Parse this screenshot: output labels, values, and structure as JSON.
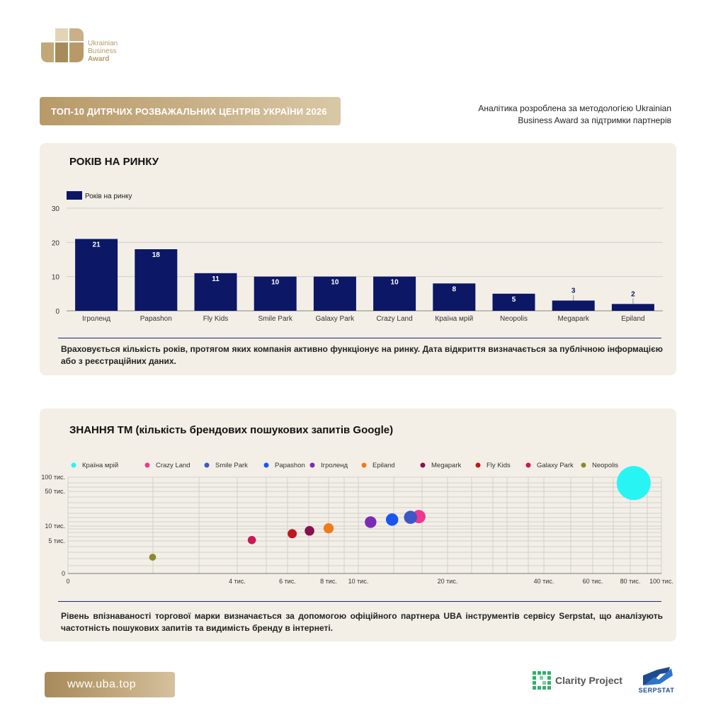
{
  "logo": {
    "line1": "Ukrainian",
    "line2": "Business",
    "line3": "Award"
  },
  "banner": {
    "title": "ТОП-10 ДИТЯЧИХ РОЗВАЖАЛЬНИХ ЦЕНТРІВ УКРАЇНИ 2026"
  },
  "methodology": {
    "text": "Аналітика розроблена за методологією Ukrainian Business Award за підтримки партнерів"
  },
  "panel1": {
    "title": "РОКІВ НА РИНКУ",
    "note": "Враховується кількість років, протягом яких компанія активно функціонує на ринку. Дата відкриття визначається за публічною інформацією або з реєстраційних даних."
  },
  "panel2": {
    "title": "ЗНАННЯ ТМ (кількість брендових пошукових запитів Google)",
    "note": "Рівень впізнаваності торгової марки визначається за допомогою офіційного партнера UBA інструментів сервісу Serpstat, що аналізують частотність пошукових запитів та видимість бренду в інтернеті."
  },
  "footer": {
    "site": "www.uba.top",
    "clarity": "Clarity Project",
    "serpstat": "SERPSTAT"
  },
  "colors": {
    "bar": "#0c1766",
    "gold": "#b89a68",
    "panel": "#f3efe6"
  },
  "chart_data": [
    {
      "type": "bar",
      "title": "РОКІВ НА РИНКУ",
      "legend": "Років на ринку",
      "legend_position": "top-left",
      "categories": [
        "Ігроленд",
        "Papashon",
        "Fly Kids",
        "Smile Park",
        "Galaxy Park",
        "Crazy Land",
        "Країна мрій",
        "Neopolis",
        "Megapark",
        "Epiland"
      ],
      "values": [
        21,
        18,
        11,
        10,
        10,
        10,
        8,
        5,
        3,
        2
      ],
      "ylim": [
        0,
        30
      ],
      "yticks": [
        0,
        10,
        20,
        30
      ],
      "grid": true
    },
    {
      "type": "scatter",
      "title": "ЗНАННЯ ТМ (кількість брендових пошукових запитів Google)",
      "legend_position": "top",
      "xscale": "log",
      "yscale": "log",
      "xticks": [
        {
          "value": 0,
          "label": "0"
        },
        {
          "value": 4000,
          "label": "4 тис."
        },
        {
          "value": 6000,
          "label": "6 тис."
        },
        {
          "value": 8000,
          "label": "8 тис."
        },
        {
          "value": 10000,
          "label": "10 тис."
        },
        {
          "value": 20000,
          "label": "20 тис."
        },
        {
          "value": 40000,
          "label": "40 тис."
        },
        {
          "value": 60000,
          "label": "60 тис."
        },
        {
          "value": 80000,
          "label": "80 тис."
        },
        {
          "value": 100000,
          "label": "100 тис."
        }
      ],
      "yticks": [
        {
          "value": 0,
          "label": "0"
        },
        {
          "value": 5000,
          "label": "5 тис."
        },
        {
          "value": 10000,
          "label": "10 тис."
        },
        {
          "value": 50000,
          "label": "50 тис."
        },
        {
          "value": 100000,
          "label": "100 тис."
        }
      ],
      "series": [
        {
          "name": "Країна мрій",
          "color": "#28f4f4",
          "x": 82000,
          "y": 75000
        },
        {
          "name": "Crazy Land",
          "color": "#f0368f",
          "x": 16000,
          "y": 15500
        },
        {
          "name": "Smile Park",
          "color": "#3b58c4",
          "x": 15000,
          "y": 15000
        },
        {
          "name": "Papashon",
          "color": "#1a55f0",
          "x": 13000,
          "y": 13500
        },
        {
          "name": "Ігроленд",
          "color": "#7a2cb6",
          "x": 11000,
          "y": 12000
        },
        {
          "name": "Epiland",
          "color": "#f07c19",
          "x": 8000,
          "y": 9000
        },
        {
          "name": "Megapark",
          "color": "#85114f",
          "x": 7000,
          "y": 8000
        },
        {
          "name": "Fly Kids",
          "color": "#c0171b",
          "x": 6200,
          "y": 7000
        },
        {
          "name": "Galaxy Park",
          "color": "#c8195a",
          "x": 4500,
          "y": 5200
        },
        {
          "name": "Neopolis",
          "color": "#8a8a2a",
          "x": 2000,
          "y": 2500
        }
      ]
    }
  ]
}
